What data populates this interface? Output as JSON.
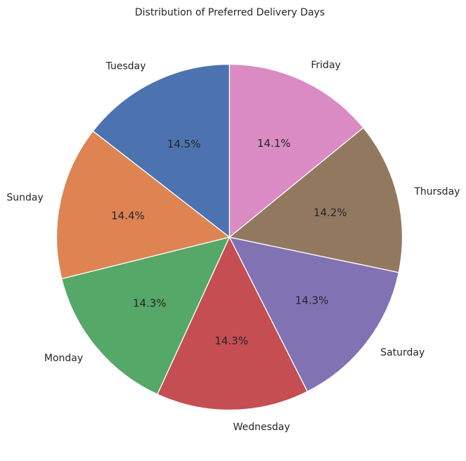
{
  "chart_data": {
    "type": "pie",
    "title": "Distribution of Preferred Delivery Days",
    "categories": [
      "Tuesday",
      "Sunday",
      "Monday",
      "Wednesday",
      "Saturday",
      "Thursday",
      "Friday"
    ],
    "values": [
      14.5,
      14.4,
      14.3,
      14.3,
      14.3,
      14.2,
      14.1
    ],
    "percent_labels": [
      "14.5%",
      "14.4%",
      "14.3%",
      "14.3%",
      "14.3%",
      "14.2%",
      "14.1%"
    ],
    "colors": [
      "#4c72b0",
      "#dd8452",
      "#55a868",
      "#c44e52",
      "#8172b3",
      "#937860",
      "#da8bc3"
    ],
    "start_angle_deg": 90,
    "direction": "counterclockwise",
    "legend": "none"
  }
}
